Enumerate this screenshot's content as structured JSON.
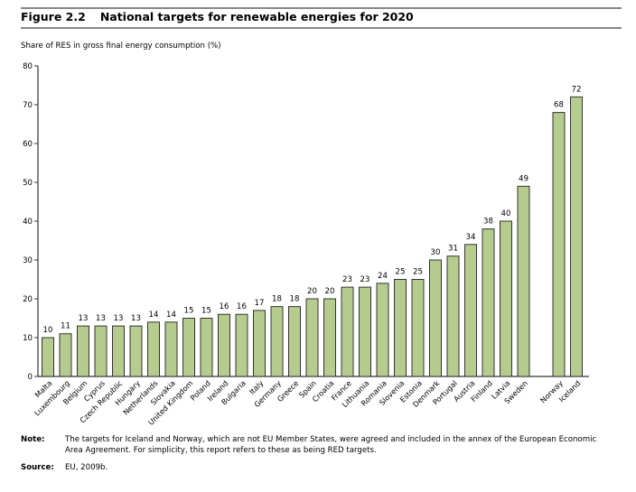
{
  "figure": {
    "number": "Figure 2.2",
    "title": "National targets for renewable energies for 2020"
  },
  "note": {
    "label": "Note:",
    "text": "The targets for Iceland and Norway, which are not EU Member States, were agreed and included in the annex of the European Economic Area Agreement. For simplicity, this report refers to these as being RED targets."
  },
  "source": {
    "label": "Source:",
    "text": "EU, 2009b."
  },
  "colors": {
    "bar": "#b5cc8e",
    "bar_border": "#333333"
  },
  "chart_data": {
    "type": "bar",
    "title": "National targets for renewable energies for 2020",
    "ylabel": "Share of RES in gross final energy consumption (%)",
    "xlabel": "",
    "ylim": [
      0,
      80
    ],
    "yticks": [
      0,
      10,
      20,
      30,
      40,
      50,
      60,
      70,
      80
    ],
    "categories": [
      "Malta",
      "Luxembourg",
      "Belgium",
      "Cyprus",
      "Czech Republic",
      "Hungary",
      "Netherlands",
      "Slovakia",
      "United Kingdom",
      "Poland",
      "Ireland",
      "Bulgaria",
      "Italy",
      "Germany",
      "Greece",
      "Spain",
      "Croatia",
      "France",
      "Lithuania",
      "Romania",
      "Slovenia",
      "Estonia",
      "Denmark",
      "Portugal",
      "Austria",
      "Finland",
      "Latvia",
      "Sweden",
      "Norway",
      "Iceland"
    ],
    "values": [
      10,
      11,
      13,
      13,
      13,
      13,
      14,
      14,
      15,
      15,
      16,
      16,
      17,
      18,
      18,
      20,
      20,
      23,
      23,
      24,
      25,
      25,
      30,
      31,
      34,
      38,
      40,
      49,
      68,
      72
    ],
    "groups": [
      "EU",
      "EU",
      "EU",
      "EU",
      "EU",
      "EU",
      "EU",
      "EU",
      "EU",
      "EU",
      "EU",
      "EU",
      "EU",
      "EU",
      "EU",
      "EU",
      "EU",
      "EU",
      "EU",
      "EU",
      "EU",
      "EU",
      "EU",
      "EU",
      "EU",
      "EU",
      "EU",
      "EU",
      "non-EU",
      "non-EU"
    ],
    "grid": false,
    "legend": "none"
  }
}
